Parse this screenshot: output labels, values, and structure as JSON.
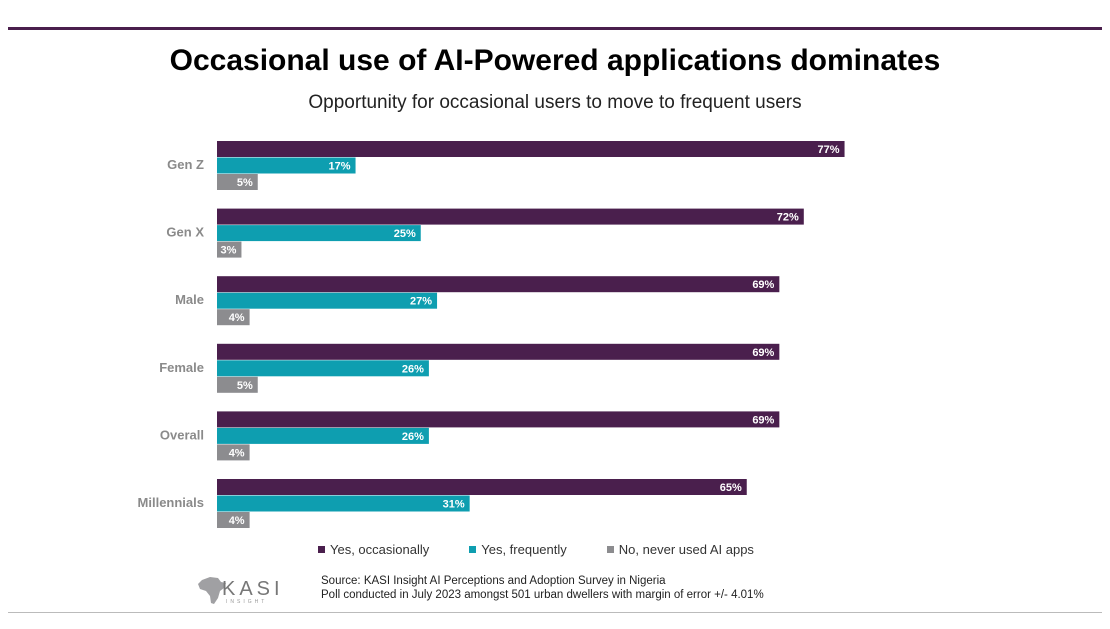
{
  "title": "Occasional use of AI-Powered applications dominates",
  "subtitle": "Opportunity for occasional users to move to frequent users",
  "chart_data": {
    "type": "bar",
    "orientation": "horizontal",
    "categories": [
      "Gen Z",
      "Gen X",
      "Male",
      "Female",
      "Overall",
      "Millennials"
    ],
    "series": [
      {
        "name": "Yes, occasionally",
        "color": "#4a1f4d",
        "values": [
          77,
          72,
          69,
          69,
          69,
          65
        ]
      },
      {
        "name": "Yes, frequently",
        "color": "#0e9eb0",
        "values": [
          17,
          25,
          27,
          26,
          26,
          31
        ]
      },
      {
        "name": "No, never used AI apps",
        "color": "#8c8c8f",
        "values": [
          5,
          3,
          4,
          5,
          4,
          4
        ]
      }
    ],
    "value_suffix": "%",
    "xlim": [
      0,
      100
    ],
    "legend_position": "bottom"
  },
  "legend": [
    {
      "label": "Yes, occasionally",
      "color": "#4a1f4d"
    },
    {
      "label": "Yes, frequently",
      "color": "#0e9eb0"
    },
    {
      "label": "No, never used AI apps",
      "color": "#8c8c8f"
    }
  ],
  "logo": {
    "name": "KASI",
    "tagline": "INSIGHT"
  },
  "source": {
    "line1": "Source: KASI Insight AI Perceptions and Adoption Survey in Nigeria",
    "line2": "Poll conducted in July 2023 amongst 501 urban dwellers with margin of error +/- 4.01%"
  }
}
